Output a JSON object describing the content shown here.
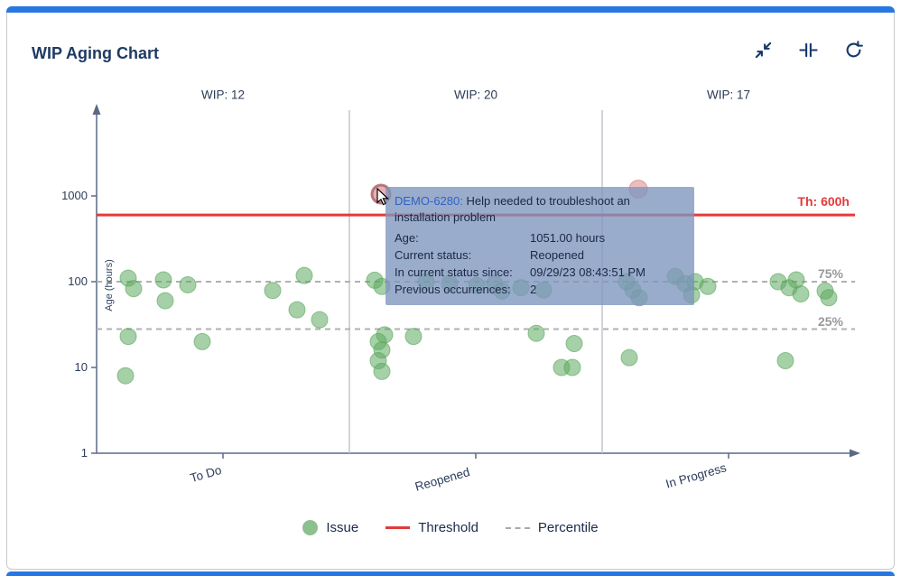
{
  "header": {
    "title": "WIP Aging Chart"
  },
  "icons": {
    "collapse": "diagonal-arrows-inward",
    "fit": "compress-horizontal",
    "refresh": "circular-arrow"
  },
  "legend": {
    "issue": "Issue",
    "threshold": "Threshold",
    "percentile": "Percentile"
  },
  "tooltip": {
    "issue_key": "DEMO-6280:",
    "summary": " Help needed to troubleshoot an installation problem",
    "rows": [
      {
        "label": "Age:",
        "value": "1051.00 hours"
      },
      {
        "label": "Current status:",
        "value": "Reopened"
      },
      {
        "label": "In current status since:",
        "value": "09/29/23 08:43:51 PM"
      },
      {
        "label": "Previous occurrences:",
        "value": "2"
      }
    ]
  },
  "chart_data": {
    "type": "scatter",
    "title": "WIP Aging Chart",
    "ylabel": "Age (hours)",
    "yscale": "log",
    "ylim": [
      1,
      3000
    ],
    "yticks": [
      1,
      10,
      100,
      1000
    ],
    "grid": false,
    "legend_position": "bottom",
    "columns": [
      {
        "label": "To Do",
        "wip": "WIP: 12"
      },
      {
        "label": "Reopened",
        "wip": "WIP: 20"
      },
      {
        "label": "In Progress",
        "wip": "WIP: 17"
      }
    ],
    "threshold": {
      "hours": 600,
      "label": "Th: 600h",
      "color": "#e23b3b"
    },
    "percentiles": [
      {
        "label": "75%",
        "hours": 100
      },
      {
        "label": "25%",
        "hours": 28
      }
    ],
    "colors": {
      "issue": "#8cc08e",
      "alert": "#e2a9ab",
      "alert_ring": "#a85d60"
    },
    "points": [
      {
        "status": "To Do",
        "x": 134,
        "hours": 110
      },
      {
        "status": "To Do",
        "x": 140,
        "hours": 83
      },
      {
        "status": "To Do",
        "x": 173,
        "hours": 105
      },
      {
        "status": "To Do",
        "x": 175,
        "hours": 60
      },
      {
        "status": "To Do",
        "x": 200,
        "hours": 92
      },
      {
        "status": "To Do",
        "x": 134,
        "hours": 23
      },
      {
        "status": "To Do",
        "x": 216,
        "hours": 20
      },
      {
        "status": "To Do",
        "x": 131,
        "hours": 8
      },
      {
        "status": "To Do",
        "x": 294,
        "hours": 79
      },
      {
        "status": "To Do",
        "x": 321,
        "hours": 47
      },
      {
        "status": "To Do",
        "x": 329,
        "hours": 118
      },
      {
        "status": "To Do",
        "x": 346,
        "hours": 36
      },
      {
        "status": "Reopened",
        "x": 414,
        "hours": 1051,
        "kind": "alert-active",
        "issue": "DEMO-6280"
      },
      {
        "status": "Reopened",
        "x": 407,
        "hours": 104
      },
      {
        "status": "Reopened",
        "x": 415,
        "hours": 88
      },
      {
        "status": "Reopened",
        "x": 418,
        "hours": 24
      },
      {
        "status": "Reopened",
        "x": 411,
        "hours": 20
      },
      {
        "status": "Reopened",
        "x": 415,
        "hours": 16
      },
      {
        "status": "Reopened",
        "x": 411,
        "hours": 12
      },
      {
        "status": "Reopened",
        "x": 415,
        "hours": 9
      },
      {
        "status": "Reopened",
        "x": 450,
        "hours": 23
      },
      {
        "status": "Reopened",
        "x": 464,
        "hours": 100
      },
      {
        "status": "Reopened",
        "x": 490,
        "hours": 95
      },
      {
        "status": "Reopened",
        "x": 520,
        "hours": 90
      },
      {
        "status": "Reopened",
        "x": 540,
        "hours": 95
      },
      {
        "status": "Reopened",
        "x": 548,
        "hours": 78
      },
      {
        "status": "Reopened",
        "x": 569,
        "hours": 85
      },
      {
        "status": "Reopened",
        "x": 586,
        "hours": 25
      },
      {
        "status": "Reopened",
        "x": 594,
        "hours": 80
      },
      {
        "status": "Reopened",
        "x": 614,
        "hours": 10
      },
      {
        "status": "Reopened",
        "x": 626,
        "hours": 10
      },
      {
        "status": "Reopened",
        "x": 628,
        "hours": 19
      },
      {
        "status": "In Progress",
        "x": 699,
        "hours": 1200,
        "kind": "alert"
      },
      {
        "status": "In Progress",
        "x": 686,
        "hours": 100
      },
      {
        "status": "In Progress",
        "x": 693,
        "hours": 80
      },
      {
        "status": "In Progress",
        "x": 700,
        "hours": 65
      },
      {
        "status": "In Progress",
        "x": 740,
        "hours": 115
      },
      {
        "status": "In Progress",
        "x": 751,
        "hours": 95
      },
      {
        "status": "In Progress",
        "x": 758,
        "hours": 70
      },
      {
        "status": "In Progress",
        "x": 689,
        "hours": 13
      },
      {
        "status": "In Progress",
        "x": 762,
        "hours": 100
      },
      {
        "status": "In Progress",
        "x": 776,
        "hours": 88
      },
      {
        "status": "In Progress",
        "x": 854,
        "hours": 100
      },
      {
        "status": "In Progress",
        "x": 866,
        "hours": 85
      },
      {
        "status": "In Progress",
        "x": 874,
        "hours": 105
      },
      {
        "status": "In Progress",
        "x": 879,
        "hours": 72
      },
      {
        "status": "In Progress",
        "x": 906,
        "hours": 78
      },
      {
        "status": "In Progress",
        "x": 910,
        "hours": 65
      },
      {
        "status": "In Progress",
        "x": 862,
        "hours": 12
      }
    ]
  }
}
